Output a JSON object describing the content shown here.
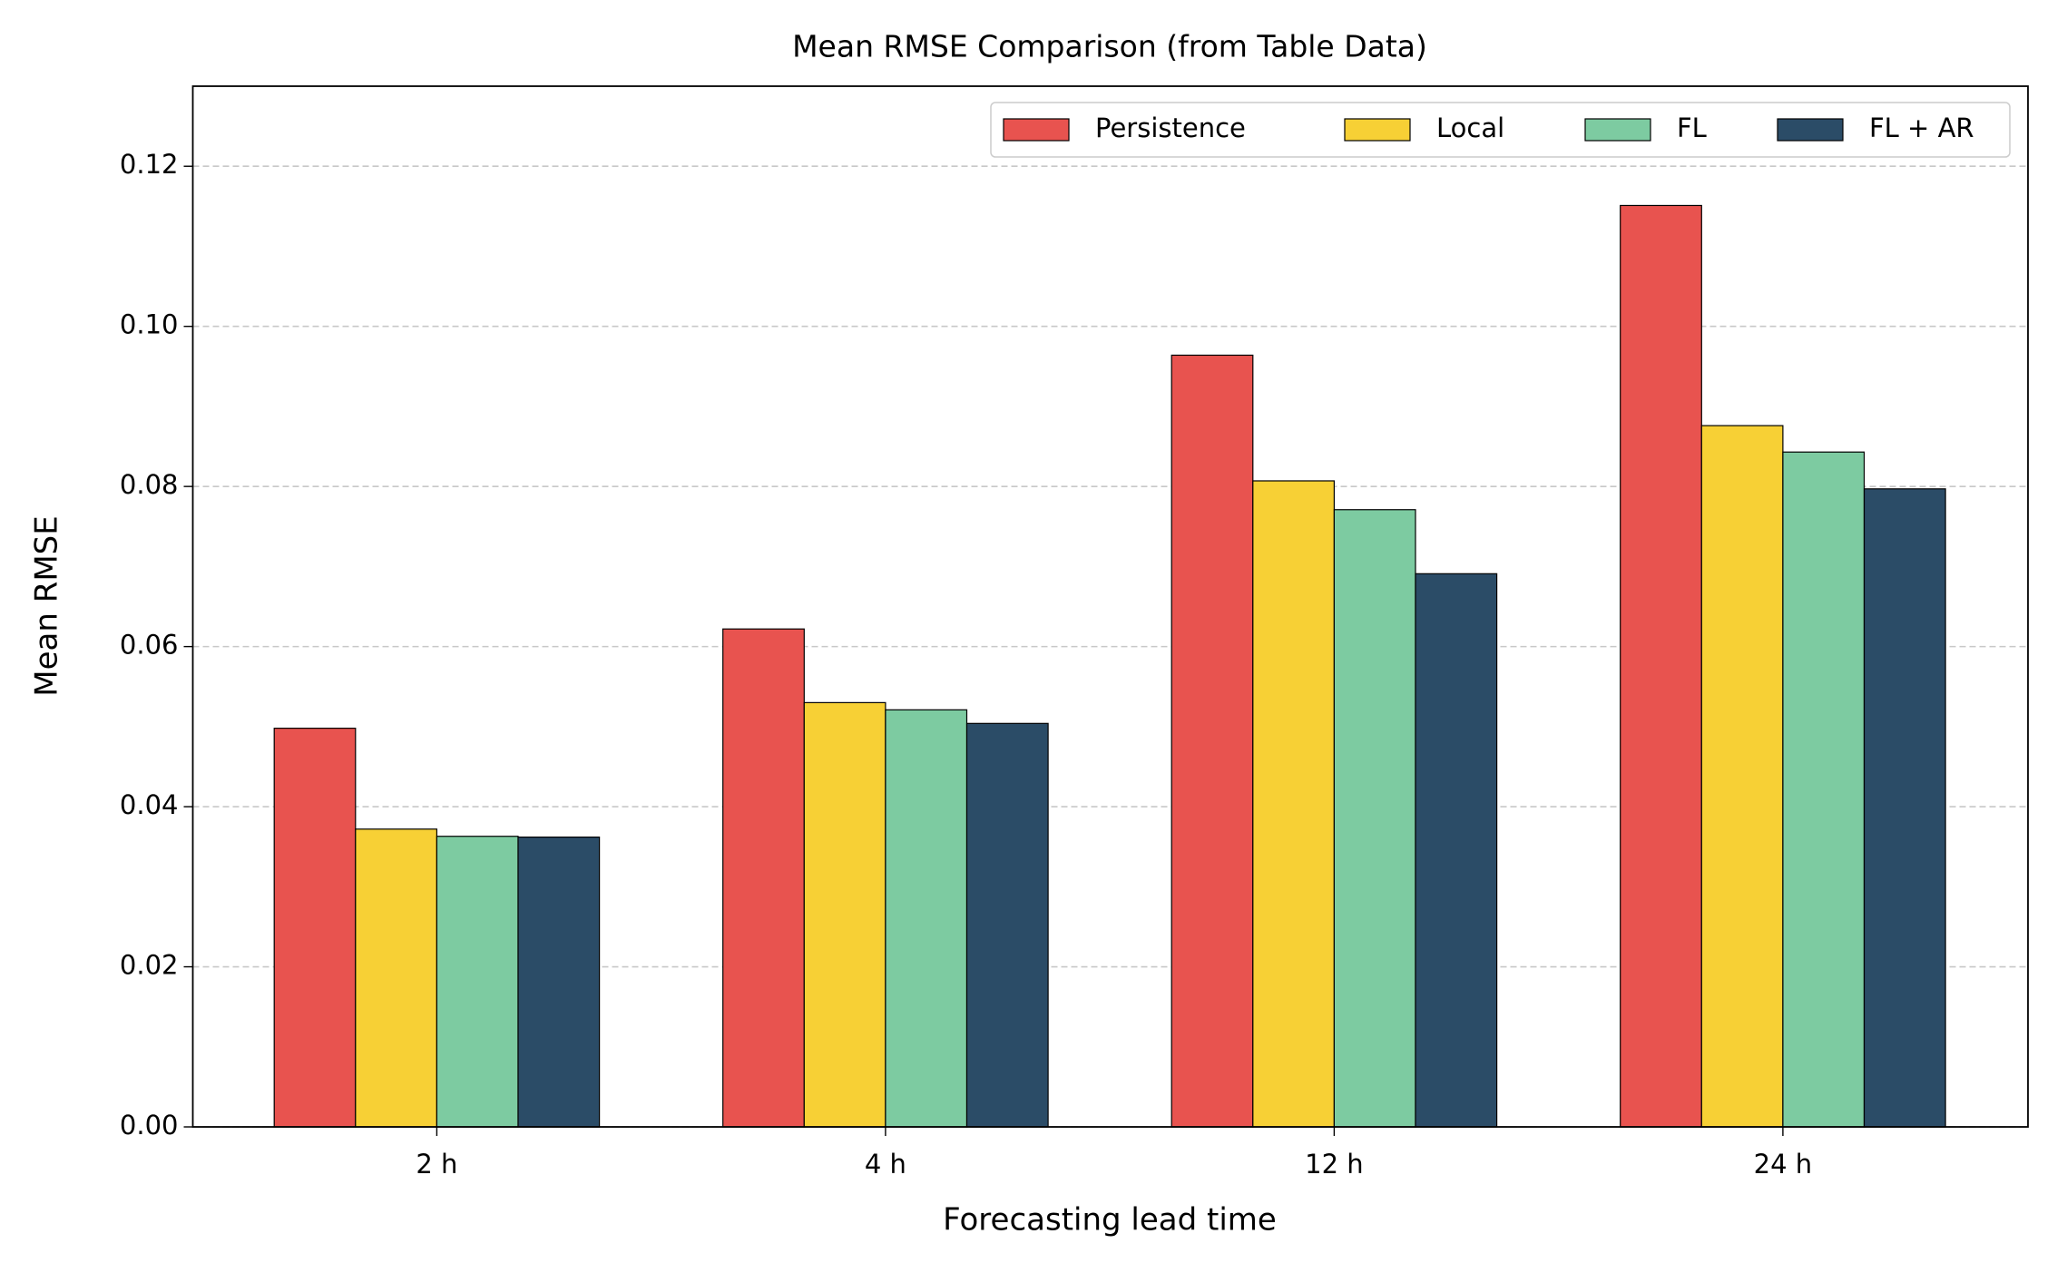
{
  "chart_data": {
    "type": "bar",
    "title": "Mean RMSE Comparison (from Table Data)",
    "x_label": "Forecasting lead time",
    "y_label": "Mean RMSE",
    "categories": [
      "2 h",
      "4 h",
      "12 h",
      "24 h"
    ],
    "series": [
      {
        "name": "Persistence",
        "color": "#e8534f",
        "values": [
          0.0498,
          0.0622,
          0.0964,
          0.1151
        ]
      },
      {
        "name": "Local",
        "color": "#f7d035",
        "values": [
          0.0372,
          0.053,
          0.0807,
          0.0876
        ]
      },
      {
        "name": "FL",
        "color": "#7dcba1",
        "values": [
          0.0363,
          0.0521,
          0.0771,
          0.0843
        ]
      },
      {
        "name": "FL + AR",
        "color": "#2b4c67",
        "values": [
          0.0362,
          0.0504,
          0.0691,
          0.0797
        ]
      }
    ],
    "ylim": [
      0,
      0.13
    ],
    "yticks": [
      {
        "value": 0,
        "label": "0.00"
      },
      0.02,
      0.04,
      0.06,
      0.08,
      {
        "value": 0.1,
        "label": "0.10"
      },
      0.12
    ],
    "grid": true,
    "legend": "upper right"
  }
}
